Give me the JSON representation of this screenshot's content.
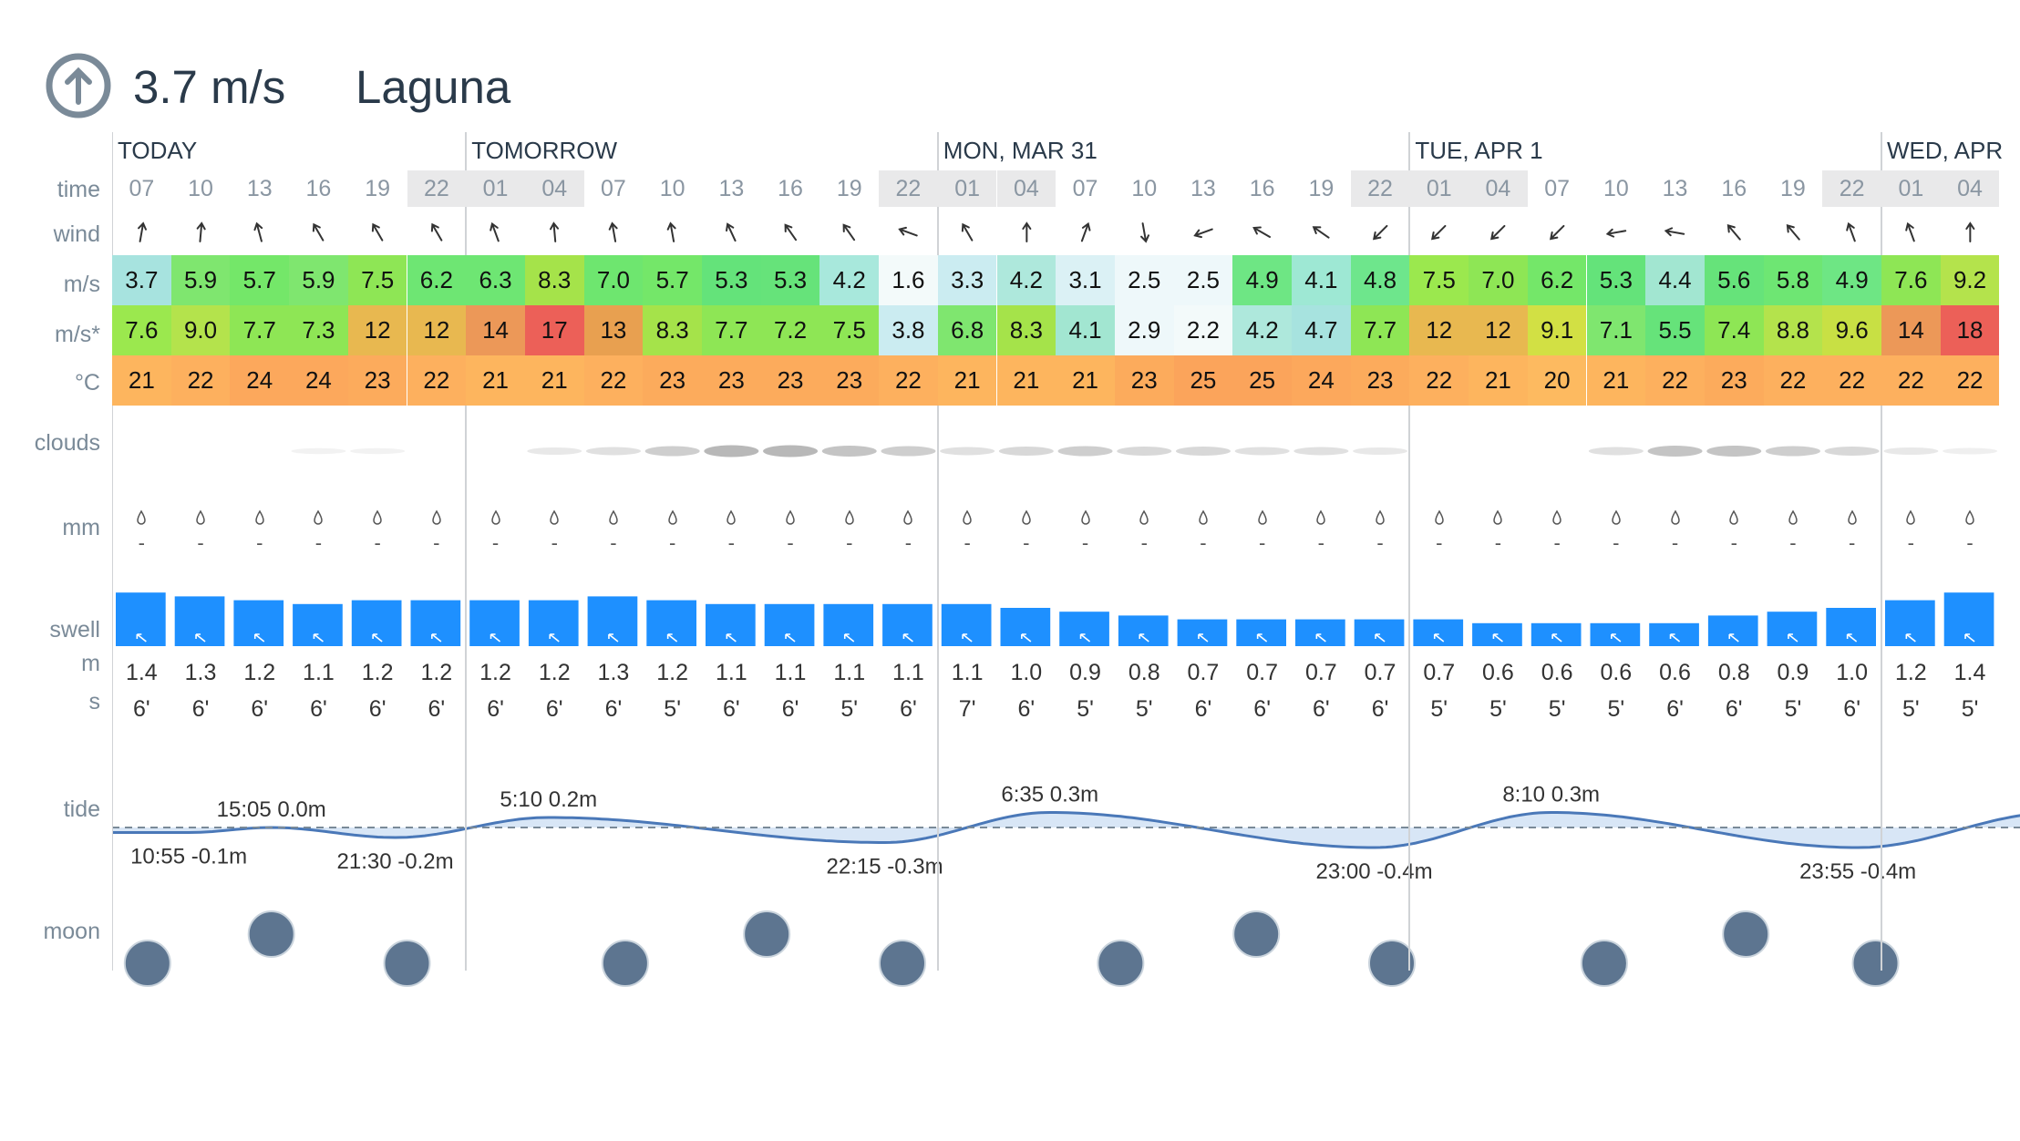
{
  "header": {
    "speed": "3.7 m/s",
    "spot": "Laguna",
    "icon": "up-arrow-circle-icon"
  },
  "row_labels": {
    "time": "time",
    "wind": "wind",
    "ms": "m/s",
    "gust": "m/s*",
    "temp": "°C",
    "clouds": "clouds",
    "mm": "mm",
    "swell": "swell",
    "swell_m": "m",
    "swell_s": "s",
    "tide": "tide",
    "moon": "moon"
  },
  "days": [
    {
      "label": "TODAY",
      "start": 0
    },
    {
      "label": "TOMORROW",
      "start": 6
    },
    {
      "label": "MON, MAR 31",
      "start": 14
    },
    {
      "label": "TUE, APR 1",
      "start": 22
    },
    {
      "label": "WED, APR",
      "start": 30
    }
  ],
  "times": [
    "07",
    "10",
    "13",
    "16",
    "19",
    "22",
    "01",
    "04",
    "07",
    "10",
    "13",
    "16",
    "19",
    "22",
    "01",
    "04",
    "07",
    "10",
    "13",
    "16",
    "19",
    "22",
    "01",
    "04",
    "07",
    "10",
    "13",
    "16",
    "19",
    "22",
    "01",
    "04"
  ],
  "night_indices": [
    5,
    6,
    7,
    13,
    14,
    15,
    21,
    22,
    23,
    29,
    30,
    31
  ],
  "wind_dir_deg": [
    10,
    5,
    -15,
    -30,
    -30,
    -30,
    -20,
    -5,
    -10,
    -10,
    -25,
    -35,
    -35,
    -70,
    -30,
    0,
    20,
    170,
    -110,
    -60,
    -55,
    -135,
    -135,
    -135,
    -135,
    -100,
    -80,
    -40,
    -40,
    -20,
    -20,
    0
  ],
  "wind_ms": [
    "3.7",
    "5.9",
    "5.7",
    "5.9",
    "7.5",
    "6.2",
    "6.3",
    "8.3",
    "7.0",
    "5.7",
    "5.3",
    "5.3",
    "4.2",
    "1.6",
    "3.3",
    "4.2",
    "3.1",
    "2.5",
    "2.5",
    "4.9",
    "4.1",
    "4.8",
    "7.5",
    "7.0",
    "6.2",
    "5.3",
    "4.4",
    "5.6",
    "5.8",
    "4.9",
    "7.6",
    "9.2"
  ],
  "wind_ms_colors": [
    "#a7e3df",
    "#7fe66f",
    "#74e769",
    "#7fe66f",
    "#8ee655",
    "#6ee673",
    "#6ee673",
    "#a5e34a",
    "#6ee66f",
    "#74e769",
    "#64e37a",
    "#66e37a",
    "#a8e8dc",
    "#f3fafa",
    "#cbecf1",
    "#aee8dc",
    "#dbf1f5",
    "#eef8fa",
    "#eef8fa",
    "#6ee684",
    "#9ee8d4",
    "#6ee68c",
    "#9be84e",
    "#8ee655",
    "#74e769",
    "#64e37a",
    "#a2e6d1",
    "#66e37a",
    "#6ee673",
    "#6ee684",
    "#8ee655",
    "#b4e34c"
  ],
  "gust_ms": [
    "7.6",
    "9.0",
    "7.7",
    "7.3",
    "12",
    "12",
    "14",
    "17",
    "13",
    "8.3",
    "7.7",
    "7.2",
    "7.5",
    "3.8",
    "6.8",
    "8.3",
    "4.1",
    "2.9",
    "2.2",
    "4.2",
    "4.7",
    "7.7",
    "12",
    "12",
    "9.1",
    "7.1",
    "5.5",
    "7.4",
    "8.8",
    "9.6",
    "14",
    "18"
  ],
  "gust_colors": [
    "#9be84e",
    "#b4e34c",
    "#8ee655",
    "#8ee655",
    "#e8b850",
    "#e8b850",
    "#ec9858",
    "#ec6058",
    "#e8a050",
    "#a5e34a",
    "#8ee655",
    "#8ee655",
    "#8ee655",
    "#cbecf1",
    "#7fe66f",
    "#a5e34a",
    "#a2e6d1",
    "#eef8fa",
    "#f3fafa",
    "#aee8dc",
    "#a7e3df",
    "#8ee655",
    "#e8b850",
    "#e8b850",
    "#d2e044",
    "#7fe66f",
    "#66e37a",
    "#8ee655",
    "#b4e34c",
    "#c8e044",
    "#ec9858",
    "#ec6058"
  ],
  "temp_c": [
    "21",
    "22",
    "24",
    "24",
    "23",
    "22",
    "21",
    "21",
    "22",
    "23",
    "23",
    "23",
    "23",
    "22",
    "21",
    "21",
    "21",
    "23",
    "25",
    "25",
    "24",
    "23",
    "22",
    "21",
    "20",
    "21",
    "22",
    "23",
    "22",
    "22",
    "22",
    "22"
  ],
  "temp_colors": [
    "#fdb55e",
    "#fdb05e",
    "#fca85c",
    "#fca85c",
    "#fcab5c",
    "#fdb05e",
    "#fdb55e",
    "#fdb55e",
    "#fdb05e",
    "#fcab5c",
    "#fcab5c",
    "#fcab5c",
    "#fcab5c",
    "#fdb05e",
    "#fdb55e",
    "#fdb55e",
    "#fdb55e",
    "#fcab5c",
    "#fba45b",
    "#fba45b",
    "#fca85c",
    "#fcab5c",
    "#fdb05e",
    "#fdb55e",
    "#fdba60",
    "#fdb55e",
    "#fdb05e",
    "#fcab5c",
    "#fdb05e",
    "#fdb05e",
    "#fdb05e",
    "#fdb05e"
  ],
  "clouds_cover": [
    0,
    0,
    0,
    0.05,
    0.05,
    0,
    0,
    0.2,
    0.3,
    0.5,
    0.7,
    0.7,
    0.6,
    0.5,
    0.3,
    0.4,
    0.5,
    0.4,
    0.4,
    0.3,
    0.3,
    0.2,
    0,
    0,
    0,
    0.3,
    0.6,
    0.6,
    0.5,
    0.4,
    0.2,
    0.1
  ],
  "rain_mm": [
    "-",
    "-",
    "-",
    "-",
    "-",
    "-",
    "-",
    "-",
    "-",
    "-",
    "-",
    "-",
    "-",
    "-",
    "-",
    "-",
    "-",
    "-",
    "-",
    "-",
    "-",
    "-",
    "-",
    "-",
    "-",
    "-",
    "-",
    "-",
    "-",
    "-",
    "-",
    "-"
  ],
  "swell_m": [
    "1.4",
    "1.3",
    "1.2",
    "1.1",
    "1.2",
    "1.2",
    "1.2",
    "1.2",
    "1.3",
    "1.2",
    "1.1",
    "1.1",
    "1.1",
    "1.1",
    "1.1",
    "1.0",
    "0.9",
    "0.8",
    "0.7",
    "0.7",
    "0.7",
    "0.7",
    "0.7",
    "0.6",
    "0.6",
    "0.6",
    "0.6",
    "0.8",
    "0.9",
    "1.0",
    "1.2",
    "1.4"
  ],
  "swell_s": [
    "6'",
    "6'",
    "6'",
    "6'",
    "6'",
    "6'",
    "6'",
    "6'",
    "6'",
    "5'",
    "6'",
    "6'",
    "5'",
    "6'",
    "7'",
    "6'",
    "5'",
    "5'",
    "6'",
    "6'",
    "6'",
    "6'",
    "5'",
    "5'",
    "5'",
    "5'",
    "6'",
    "6'",
    "5'",
    "6'",
    "5'",
    "5'"
  ],
  "swell_color": "#1e90ff",
  "tide_labels": [
    {
      "text": "10:55 -0.1m",
      "slot": 1.3,
      "pos": "below"
    },
    {
      "text": "15:05 0.0m",
      "slot": 2.7,
      "pos": "above"
    },
    {
      "text": "21:30 -0.2m",
      "slot": 4.8,
      "pos": "below"
    },
    {
      "text": "5:10 0.2m",
      "slot": 7.4,
      "pos": "above"
    },
    {
      "text": "22:15 -0.3m",
      "slot": 13.1,
      "pos": "below"
    },
    {
      "text": "6:35 0.3m",
      "slot": 15.9,
      "pos": "above"
    },
    {
      "text": "23:00 -0.4m",
      "slot": 21.4,
      "pos": "below"
    },
    {
      "text": "8:10 0.3m",
      "slot": 24.4,
      "pos": "above"
    },
    {
      "text": "23:55 -0.4m",
      "slot": 29.6,
      "pos": "below"
    }
  ],
  "tide_color": "#4a78b8",
  "moon_color": "#5d7590"
}
